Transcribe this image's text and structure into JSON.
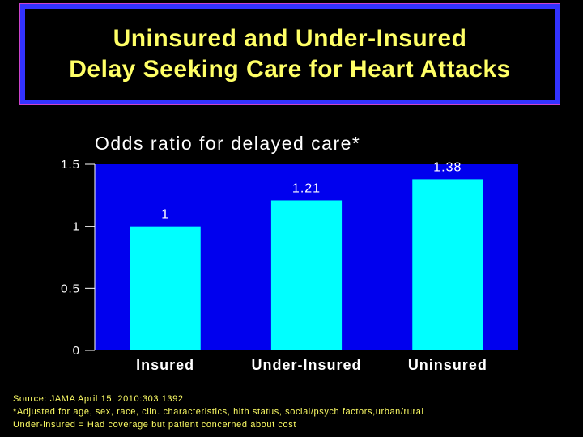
{
  "slide": {
    "title_line1": "Uninsured and Under-Insured",
    "title_line2": "Delay Seeking Care for Heart Attacks"
  },
  "colors": {
    "title_text": "#ffff66",
    "title_border": "#3333ff",
    "plot_background": "#0000ee",
    "bar_fill": "#00ffff",
    "text": "#ffffff"
  },
  "chart_data": {
    "type": "bar",
    "title": "Odds ratio for delayed care*",
    "categories": [
      "Insured",
      "Under-Insured",
      "Uninsured"
    ],
    "values": [
      1,
      1.21,
      1.38
    ],
    "data_labels": [
      "1",
      "1.21",
      "1.38"
    ],
    "ylim": [
      0,
      1.5
    ],
    "yticks": [
      0,
      0.5,
      1,
      1.5
    ],
    "ytick_labels": [
      "0",
      "0.5",
      "1",
      "1.5"
    ],
    "xlabel": "",
    "ylabel": "",
    "grid": false,
    "legend": "none"
  },
  "footnotes": {
    "source": "Source: JAMA April 15, 2010:303:1392",
    "adjusted": "*Adjusted for age, sex, race, clin. characteristics, hlth status, social/psych factors,urban/rural",
    "definition": "Under-insured = Had coverage but patient concerned about cost"
  }
}
